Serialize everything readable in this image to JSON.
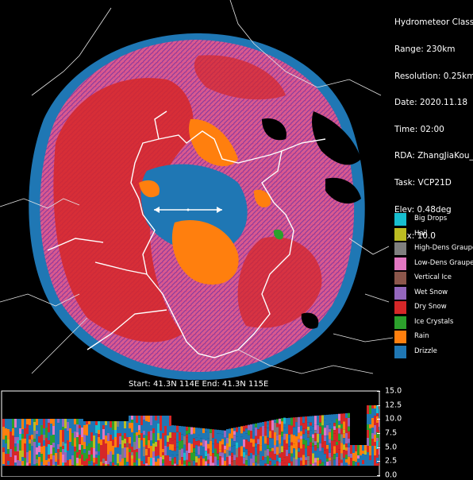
{
  "info": {
    "title": "Hydrometeor Class",
    "range": "Range: 230km",
    "resolution": "Resolution: 0.25km",
    "date": "Date: 2020.11.18",
    "time": "Time: 02:00",
    "rda": "RDA: ZhangJiaKou_Z",
    "task": "Task: VCP21D",
    "elev": "Elev: 0.48deg",
    "max": "Max: 10.0"
  },
  "legend": [
    {
      "label": "Big Drops",
      "color": "#17becf"
    },
    {
      "label": "Hail",
      "color": "#bcbd22"
    },
    {
      "label": "High-Dens Graupel",
      "color": "#7f7f7f"
    },
    {
      "label": "Low-Dens Graupel",
      "color": "#e377c2"
    },
    {
      "label": "Vertical Ice",
      "color": "#8c564b"
    },
    {
      "label": "Wet Snow",
      "color": "#9467bd"
    },
    {
      "label": "Dry Snow",
      "color": "#d62728"
    },
    {
      "label": "Ice Crystals",
      "color": "#2ca02c"
    },
    {
      "label": "Rain",
      "color": "#ff7f0e"
    },
    {
      "label": "Drizzle",
      "color": "#1f77b4"
    }
  ],
  "cross_section": {
    "caption": "Start: 41.3N 114E End: 41.3N 115E",
    "height_ticks": [
      "15.0",
      "12.5",
      "10.0",
      "7.5",
      "5.0",
      "2.5",
      "0.0"
    ]
  }
}
